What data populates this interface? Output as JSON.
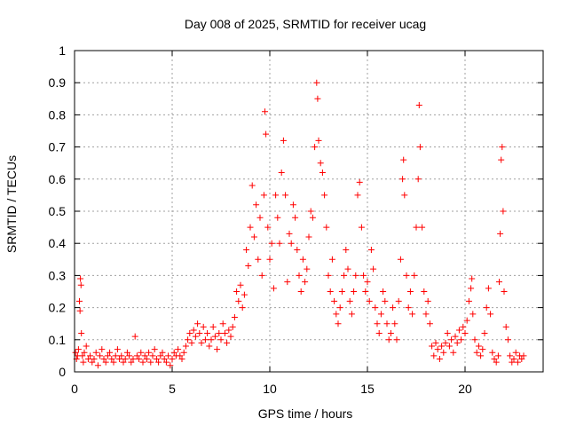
{
  "chart_data": {
    "type": "scatter",
    "title": "Day 008 of 2025, SRMTID for receiver ucag",
    "xlabel": "GPS time / hours",
    "ylabel": "SRMTID / TECUs",
    "xlim": [
      0,
      24
    ],
    "ylim": [
      0,
      1
    ],
    "grid": true,
    "marker": "+",
    "x_ticks": [
      0,
      5,
      10,
      15,
      20
    ],
    "y_ticks": [
      0,
      0.1,
      0.2,
      0.3,
      0.4,
      0.5,
      0.6,
      0.7,
      0.8,
      0.9,
      1
    ],
    "x_tick_labels": [
      "0",
      "5",
      "10",
      "15",
      "20"
    ],
    "y_tick_labels": [
      "0",
      "0.1",
      "0.2",
      "0.3",
      "0.4",
      "0.5",
      "0.6",
      "0.7",
      "0.8",
      "0.9",
      "1"
    ],
    "series": [
      {
        "name": "SRMTID",
        "color": "#ff0000",
        "points": [
          [
            0.05,
            0.06
          ],
          [
            0.1,
            0.04
          ],
          [
            0.15,
            0.05
          ],
          [
            0.2,
            0.07
          ],
          [
            0.25,
            0.22
          ],
          [
            0.28,
            0.19
          ],
          [
            0.3,
            0.29
          ],
          [
            0.33,
            0.27
          ],
          [
            0.35,
            0.12
          ],
          [
            0.4,
            0.05
          ],
          [
            0.45,
            0.03
          ],
          [
            0.5,
            0.06
          ],
          [
            0.6,
            0.08
          ],
          [
            0.7,
            0.04
          ],
          [
            0.8,
            0.05
          ],
          [
            0.9,
            0.03
          ],
          [
            1.0,
            0.04
          ],
          [
            1.1,
            0.06
          ],
          [
            1.2,
            0.02
          ],
          [
            1.3,
            0.05
          ],
          [
            1.4,
            0.07
          ],
          [
            1.5,
            0.04
          ],
          [
            1.6,
            0.03
          ],
          [
            1.7,
            0.05
          ],
          [
            1.8,
            0.06
          ],
          [
            1.9,
            0.04
          ],
          [
            2.0,
            0.03
          ],
          [
            2.1,
            0.05
          ],
          [
            2.2,
            0.07
          ],
          [
            2.3,
            0.04
          ],
          [
            2.4,
            0.05
          ],
          [
            2.5,
            0.03
          ],
          [
            2.6,
            0.04
          ],
          [
            2.7,
            0.06
          ],
          [
            2.8,
            0.05
          ],
          [
            2.9,
            0.03
          ],
          [
            3.0,
            0.04
          ],
          [
            3.1,
            0.11
          ],
          [
            3.2,
            0.05
          ],
          [
            3.3,
            0.04
          ],
          [
            3.4,
            0.06
          ],
          [
            3.5,
            0.03
          ],
          [
            3.6,
            0.05
          ],
          [
            3.7,
            0.04
          ],
          [
            3.8,
            0.06
          ],
          [
            3.9,
            0.03
          ],
          [
            4.0,
            0.05
          ],
          [
            4.1,
            0.07
          ],
          [
            4.2,
            0.04
          ],
          [
            4.3,
            0.03
          ],
          [
            4.4,
            0.05
          ],
          [
            4.5,
            0.06
          ],
          [
            4.6,
            0.04
          ],
          [
            4.7,
            0.03
          ],
          [
            4.8,
            0.05
          ],
          [
            4.9,
            0.02
          ],
          [
            5.0,
            0.04
          ],
          [
            5.1,
            0.06
          ],
          [
            5.2,
            0.05
          ],
          [
            5.3,
            0.07
          ],
          [
            5.4,
            0.05
          ],
          [
            5.5,
            0.04
          ],
          [
            5.6,
            0.06
          ],
          [
            5.7,
            0.08
          ],
          [
            5.8,
            0.1
          ],
          [
            5.9,
            0.12
          ],
          [
            6.0,
            0.09
          ],
          [
            6.1,
            0.13
          ],
          [
            6.2,
            0.11
          ],
          [
            6.3,
            0.15
          ],
          [
            6.4,
            0.12
          ],
          [
            6.5,
            0.09
          ],
          [
            6.6,
            0.14
          ],
          [
            6.7,
            0.1
          ],
          [
            6.8,
            0.12
          ],
          [
            6.9,
            0.08
          ],
          [
            7.0,
            0.1
          ],
          [
            7.1,
            0.14
          ],
          [
            7.2,
            0.11
          ],
          [
            7.3,
            0.07
          ],
          [
            7.4,
            0.12
          ],
          [
            7.5,
            0.1
          ],
          [
            7.6,
            0.15
          ],
          [
            7.7,
            0.12
          ],
          [
            7.8,
            0.09
          ],
          [
            7.9,
            0.13
          ],
          [
            8.0,
            0.11
          ],
          [
            8.1,
            0.14
          ],
          [
            8.2,
            0.17
          ],
          [
            8.3,
            0.25
          ],
          [
            8.4,
            0.22
          ],
          [
            8.5,
            0.27
          ],
          [
            8.6,
            0.2
          ],
          [
            8.7,
            0.24
          ],
          [
            8.8,
            0.38
          ],
          [
            8.9,
            0.33
          ],
          [
            9.0,
            0.45
          ],
          [
            9.1,
            0.58
          ],
          [
            9.2,
            0.42
          ],
          [
            9.3,
            0.52
          ],
          [
            9.4,
            0.35
          ],
          [
            9.5,
            0.48
          ],
          [
            9.6,
            0.3
          ],
          [
            9.7,
            0.55
          ],
          [
            9.75,
            0.81
          ],
          [
            9.8,
            0.74
          ],
          [
            9.9,
            0.45
          ],
          [
            10.0,
            0.35
          ],
          [
            10.1,
            0.4
          ],
          [
            10.2,
            0.26
          ],
          [
            10.3,
            0.55
          ],
          [
            10.4,
            0.48
          ],
          [
            10.5,
            0.4
          ],
          [
            10.6,
            0.62
          ],
          [
            10.7,
            0.72
          ],
          [
            10.8,
            0.55
          ],
          [
            10.9,
            0.28
          ],
          [
            11.0,
            0.43
          ],
          [
            11.1,
            0.4
          ],
          [
            11.2,
            0.52
          ],
          [
            11.3,
            0.48
          ],
          [
            11.4,
            0.38
          ],
          [
            11.5,
            0.3
          ],
          [
            11.6,
            0.25
          ],
          [
            11.7,
            0.35
          ],
          [
            11.8,
            0.28
          ],
          [
            11.9,
            0.32
          ],
          [
            12.0,
            0.42
          ],
          [
            12.1,
            0.5
          ],
          [
            12.2,
            0.48
          ],
          [
            12.3,
            0.7
          ],
          [
            12.4,
            0.9
          ],
          [
            12.45,
            0.85
          ],
          [
            12.5,
            0.72
          ],
          [
            12.6,
            0.65
          ],
          [
            12.7,
            0.62
          ],
          [
            12.8,
            0.55
          ],
          [
            12.9,
            0.45
          ],
          [
            13.0,
            0.3
          ],
          [
            13.1,
            0.25
          ],
          [
            13.2,
            0.35
          ],
          [
            13.3,
            0.22
          ],
          [
            13.4,
            0.18
          ],
          [
            13.5,
            0.15
          ],
          [
            13.6,
            0.2
          ],
          [
            13.7,
            0.25
          ],
          [
            13.8,
            0.3
          ],
          [
            13.9,
            0.38
          ],
          [
            14.0,
            0.32
          ],
          [
            14.1,
            0.22
          ],
          [
            14.2,
            0.18
          ],
          [
            14.3,
            0.25
          ],
          [
            14.4,
            0.3
          ],
          [
            14.5,
            0.55
          ],
          [
            14.6,
            0.59
          ],
          [
            14.7,
            0.45
          ],
          [
            14.8,
            0.3
          ],
          [
            14.9,
            0.25
          ],
          [
            15.0,
            0.28
          ],
          [
            15.1,
            0.22
          ],
          [
            15.2,
            0.38
          ],
          [
            15.3,
            0.32
          ],
          [
            15.4,
            0.2
          ],
          [
            15.5,
            0.15
          ],
          [
            15.6,
            0.12
          ],
          [
            15.7,
            0.18
          ],
          [
            15.8,
            0.25
          ],
          [
            15.9,
            0.22
          ],
          [
            16.0,
            0.15
          ],
          [
            16.1,
            0.1
          ],
          [
            16.2,
            0.12
          ],
          [
            16.3,
            0.2
          ],
          [
            16.4,
            0.15
          ],
          [
            16.5,
            0.1
          ],
          [
            16.6,
            0.22
          ],
          [
            16.7,
            0.35
          ],
          [
            16.8,
            0.6
          ],
          [
            16.85,
            0.66
          ],
          [
            16.9,
            0.55
          ],
          [
            17.0,
            0.3
          ],
          [
            17.1,
            0.2
          ],
          [
            17.2,
            0.25
          ],
          [
            17.3,
            0.18
          ],
          [
            17.4,
            0.3
          ],
          [
            17.5,
            0.45
          ],
          [
            17.6,
            0.6
          ],
          [
            17.65,
            0.83
          ],
          [
            17.7,
            0.7
          ],
          [
            17.8,
            0.45
          ],
          [
            17.9,
            0.25
          ],
          [
            18.0,
            0.18
          ],
          [
            18.1,
            0.22
          ],
          [
            18.2,
            0.15
          ],
          [
            18.3,
            0.08
          ],
          [
            18.4,
            0.05
          ],
          [
            18.5,
            0.09
          ],
          [
            18.6,
            0.07
          ],
          [
            18.7,
            0.04
          ],
          [
            18.8,
            0.08
          ],
          [
            18.9,
            0.06
          ],
          [
            19.0,
            0.09
          ],
          [
            19.1,
            0.12
          ],
          [
            19.2,
            0.08
          ],
          [
            19.3,
            0.1
          ],
          [
            19.4,
            0.06
          ],
          [
            19.5,
            0.11
          ],
          [
            19.6,
            0.09
          ],
          [
            19.7,
            0.13
          ],
          [
            19.8,
            0.1
          ],
          [
            19.9,
            0.14
          ],
          [
            20.0,
            0.12
          ],
          [
            20.1,
            0.16
          ],
          [
            20.2,
            0.22
          ],
          [
            20.3,
            0.26
          ],
          [
            20.35,
            0.29
          ],
          [
            20.4,
            0.18
          ],
          [
            20.5,
            0.1
          ],
          [
            20.6,
            0.06
          ],
          [
            20.7,
            0.08
          ],
          [
            20.8,
            0.05
          ],
          [
            20.9,
            0.07
          ],
          [
            21.0,
            0.12
          ],
          [
            21.1,
            0.2
          ],
          [
            21.2,
            0.26
          ],
          [
            21.3,
            0.18
          ],
          [
            21.4,
            0.06
          ],
          [
            21.5,
            0.04
          ],
          [
            21.6,
            0.03
          ],
          [
            21.7,
            0.05
          ],
          [
            21.75,
            0.28
          ],
          [
            21.8,
            0.43
          ],
          [
            21.85,
            0.66
          ],
          [
            21.9,
            0.7
          ],
          [
            21.95,
            0.5
          ],
          [
            22.0,
            0.25
          ],
          [
            22.1,
            0.14
          ],
          [
            22.2,
            0.1
          ],
          [
            22.3,
            0.05
          ],
          [
            22.4,
            0.03
          ],
          [
            22.5,
            0.04
          ],
          [
            22.6,
            0.06
          ],
          [
            22.7,
            0.03
          ],
          [
            22.8,
            0.05
          ],
          [
            22.9,
            0.04
          ],
          [
            23.0,
            0.05
          ]
        ]
      }
    ]
  }
}
